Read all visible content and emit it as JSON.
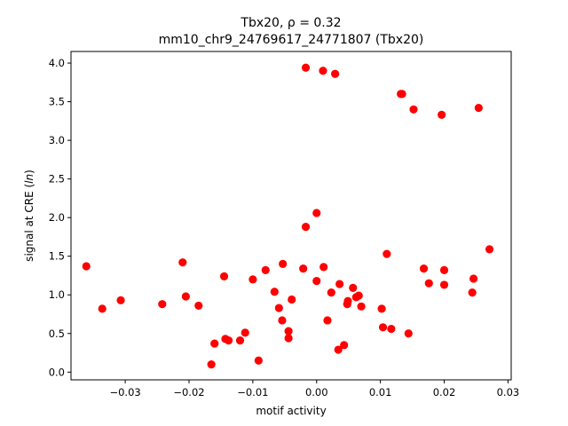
{
  "chart_data": {
    "type": "scatter",
    "title_line1": "Tbx20, ρ = 0.32",
    "title_line2": "mm10_chr9_24769617_24771807 (Tbx20)",
    "xlabel": "motif activity",
    "ylabel_prefix": "signal at CRE (",
    "ylabel_italic": "ln",
    "ylabel_suffix": ")",
    "xlim": [
      -0.0385,
      0.0305
    ],
    "ylim": [
      -0.1,
      4.15
    ],
    "xticks": [
      -0.03,
      -0.02,
      -0.01,
      0.0,
      0.01,
      0.02,
      0.03
    ],
    "xtick_labels": [
      "−0.03",
      "−0.02",
      "−0.01",
      "0.00",
      "0.01",
      "0.02",
      "0.03"
    ],
    "yticks": [
      0.0,
      0.5,
      1.0,
      1.5,
      2.0,
      2.5,
      3.0,
      3.5,
      4.0
    ],
    "ytick_labels": [
      "0.0",
      "0.5",
      "1.0",
      "1.5",
      "2.0",
      "2.5",
      "3.0",
      "3.5",
      "4.0"
    ],
    "grid": false,
    "marker_color": "#ff0000",
    "points": [
      {
        "x": -0.0361,
        "y": 1.37
      },
      {
        "x": -0.0336,
        "y": 0.82
      },
      {
        "x": -0.0307,
        "y": 0.93
      },
      {
        "x": -0.0242,
        "y": 0.88
      },
      {
        "x": -0.021,
        "y": 1.42
      },
      {
        "x": -0.0205,
        "y": 0.98
      },
      {
        "x": -0.0185,
        "y": 0.86
      },
      {
        "x": -0.0165,
        "y": 0.1
      },
      {
        "x": -0.016,
        "y": 0.37
      },
      {
        "x": -0.0145,
        "y": 1.24
      },
      {
        "x": -0.0143,
        "y": 0.43
      },
      {
        "x": -0.0138,
        "y": 0.41
      },
      {
        "x": -0.012,
        "y": 0.41
      },
      {
        "x": -0.0112,
        "y": 0.51
      },
      {
        "x": -0.01,
        "y": 1.2
      },
      {
        "x": -0.0091,
        "y": 0.15
      },
      {
        "x": -0.008,
        "y": 1.32
      },
      {
        "x": -0.0066,
        "y": 1.04
      },
      {
        "x": -0.0059,
        "y": 0.83
      },
      {
        "x": -0.0054,
        "y": 0.67
      },
      {
        "x": -0.0053,
        "y": 1.4
      },
      {
        "x": -0.0044,
        "y": 0.53
      },
      {
        "x": -0.0044,
        "y": 0.44
      },
      {
        "x": -0.0039,
        "y": 0.94
      },
      {
        "x": -0.0021,
        "y": 1.34
      },
      {
        "x": -0.0017,
        "y": 1.88
      },
      {
        "x": -0.0017,
        "y": 3.94
      },
      {
        "x": 0.0,
        "y": 2.06
      },
      {
        "x": 0.0,
        "y": 1.18
      },
      {
        "x": 0.001,
        "y": 3.9
      },
      {
        "x": 0.0011,
        "y": 1.36
      },
      {
        "x": 0.0017,
        "y": 0.67
      },
      {
        "x": 0.0023,
        "y": 1.03
      },
      {
        "x": 0.0029,
        "y": 3.86
      },
      {
        "x": 0.0034,
        "y": 0.29
      },
      {
        "x": 0.0036,
        "y": 1.14
      },
      {
        "x": 0.0043,
        "y": 0.35
      },
      {
        "x": 0.0048,
        "y": 0.88
      },
      {
        "x": 0.0049,
        "y": 0.92
      },
      {
        "x": 0.0057,
        "y": 1.09
      },
      {
        "x": 0.0062,
        "y": 0.97
      },
      {
        "x": 0.0066,
        "y": 0.99
      },
      {
        "x": 0.007,
        "y": 0.85
      },
      {
        "x": 0.0102,
        "y": 0.82
      },
      {
        "x": 0.0104,
        "y": 0.58
      },
      {
        "x": 0.011,
        "y": 1.53
      },
      {
        "x": 0.0117,
        "y": 0.56
      },
      {
        "x": 0.0132,
        "y": 3.6
      },
      {
        "x": 0.0134,
        "y": 3.6
      },
      {
        "x": 0.0144,
        "y": 0.5
      },
      {
        "x": 0.0152,
        "y": 3.4
      },
      {
        "x": 0.0168,
        "y": 1.34
      },
      {
        "x": 0.0176,
        "y": 1.15
      },
      {
        "x": 0.0196,
        "y": 3.33
      },
      {
        "x": 0.02,
        "y": 1.32
      },
      {
        "x": 0.02,
        "y": 1.13
      },
      {
        "x": 0.0244,
        "y": 1.03
      },
      {
        "x": 0.0246,
        "y": 1.21
      },
      {
        "x": 0.0254,
        "y": 3.42
      },
      {
        "x": 0.0271,
        "y": 1.59
      }
    ]
  }
}
